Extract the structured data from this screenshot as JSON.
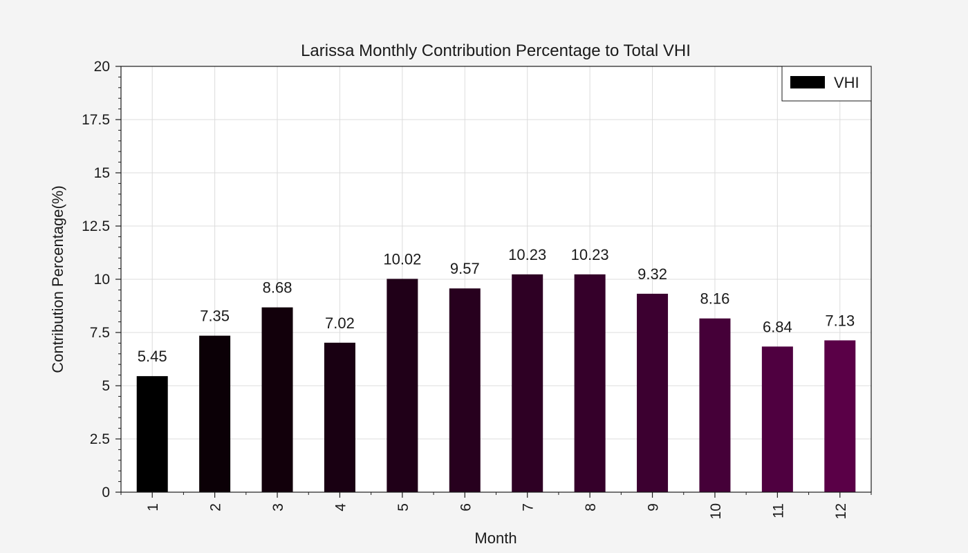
{
  "chart_data": {
    "type": "bar",
    "title": "Larissa Monthly Contribution Percentage to Total VHI",
    "xlabel": "Month",
    "ylabel": "Contribution Percentage(%)",
    "categories": [
      "1",
      "2",
      "3",
      "4",
      "5",
      "6",
      "7",
      "8",
      "9",
      "10",
      "11",
      "12"
    ],
    "series": [
      {
        "name": "VHI",
        "values": [
          5.45,
          7.35,
          8.68,
          7.02,
          10.02,
          9.57,
          10.23,
          10.23,
          9.32,
          8.16,
          6.84,
          7.13
        ],
        "data_labels": [
          "5.45",
          "7.35",
          "8.68",
          "7.02",
          "10.02",
          "9.57",
          "10.23",
          "10.23",
          "9.32",
          "8.16",
          "6.84",
          "7.13"
        ]
      }
    ],
    "ylim": [
      0,
      20
    ],
    "yticks": [
      0,
      2.5,
      5,
      7.5,
      10,
      12.5,
      15,
      17.5,
      20
    ],
    "ytick_labels": [
      "0",
      "2.5",
      "5",
      "7.5",
      "10",
      "12.5",
      "15",
      "17.5",
      "20"
    ],
    "grid": true,
    "legend_position": "top-right",
    "bar_colors": [
      "#000000",
      "#0b0006",
      "#12000b",
      "#190012",
      "#200018",
      "#27001e",
      "#2e0024",
      "#35002a",
      "#3c0030",
      "#450038",
      "#4f0040",
      "#5a0047"
    ],
    "legend_color": "#000000"
  }
}
